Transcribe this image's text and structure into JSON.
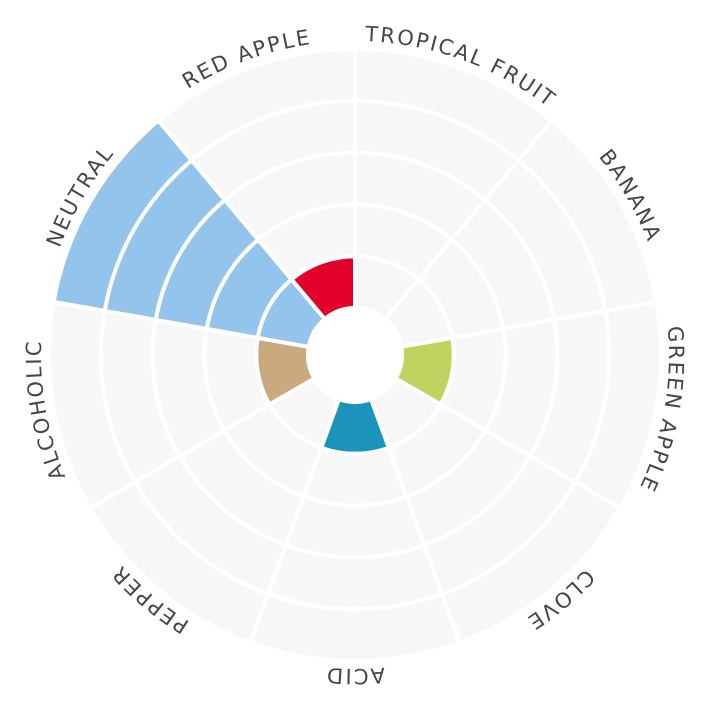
{
  "chart_data": {
    "type": "polar-bar",
    "categories": [
      "TROPICAL FRUIT",
      "BANANA",
      "GREEN APPLE",
      "CLOVE",
      "ACID",
      "PEPPER",
      "ALCOHOLIC",
      "NEUTRAL",
      "RED APPLE"
    ],
    "values": [
      0,
      0,
      1,
      0,
      1,
      0,
      1,
      5,
      1
    ],
    "rmax": 5,
    "grid": true,
    "colors": {
      "TROPICAL FRUIT": "#f7f7f8",
      "BANANA": "#f7f7f8",
      "GREEN APPLE": "#c0d260",
      "CLOVE": "#f7f7f8",
      "ACID": "#1b93bd",
      "PEPPER": "#f7f7f8",
      "ALCOHOLIC": "#c9a97d",
      "NEUTRAL": "#93c4ec",
      "RED APPLE": "#e3002b"
    },
    "background_color": "#f7f7f8"
  }
}
